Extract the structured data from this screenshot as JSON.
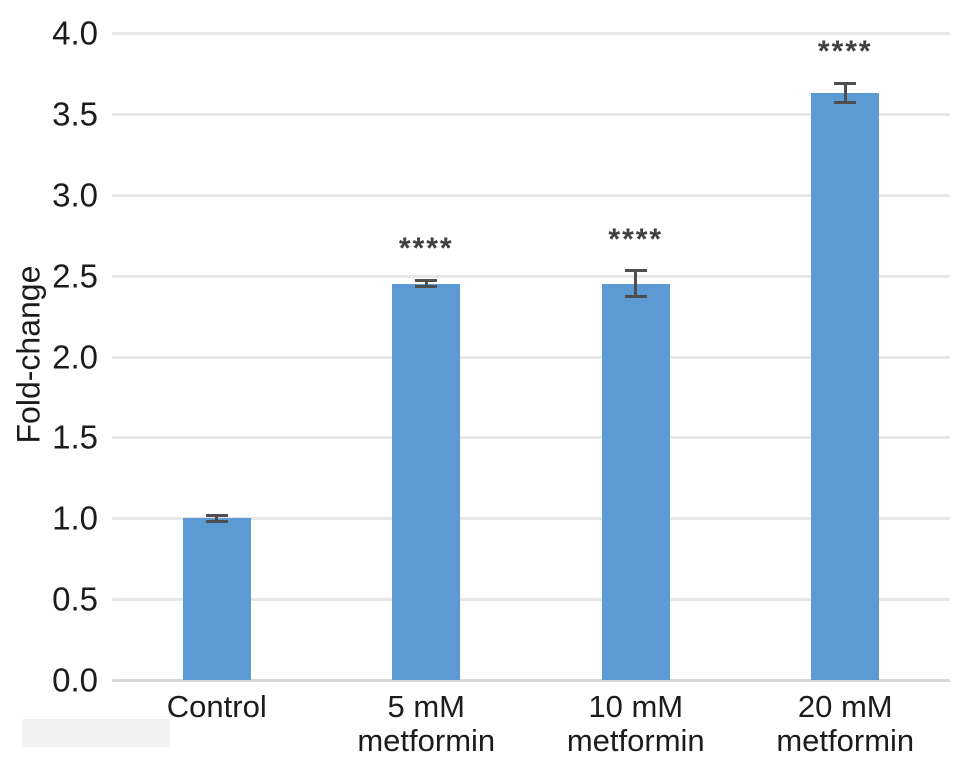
{
  "chart_data": {
    "type": "bar",
    "title": "",
    "xlabel": "",
    "ylabel": "Fold-change",
    "ylim": [
      0,
      4.0
    ],
    "yticks": [
      0,
      0.5,
      1.0,
      1.5,
      2.0,
      2.5,
      3.0,
      3.5,
      4.0
    ],
    "ytick_labels": [
      "0.0",
      "0.5",
      "1.0",
      "1.5",
      "2.0",
      "2.5",
      "3.0",
      "3.5",
      "4.0"
    ],
    "categories": [
      "Control",
      "5 mM\nmetformin",
      "10 mM\nmetformin",
      "20 mM\nmetformin"
    ],
    "values": [
      1.0,
      2.45,
      2.45,
      3.63
    ],
    "errors": [
      0.02,
      0.02,
      0.08,
      0.06
    ],
    "significance": [
      "",
      "****",
      "****",
      "****"
    ],
    "grid": true,
    "legend": false,
    "colors": {
      "bar": "#5b9ad2",
      "error_bar": "#4f4f4f",
      "gridline": "#e7e7e7",
      "baseline": "#d9d9d9",
      "text": "#1c1c1c",
      "significance": "#404040"
    }
  }
}
